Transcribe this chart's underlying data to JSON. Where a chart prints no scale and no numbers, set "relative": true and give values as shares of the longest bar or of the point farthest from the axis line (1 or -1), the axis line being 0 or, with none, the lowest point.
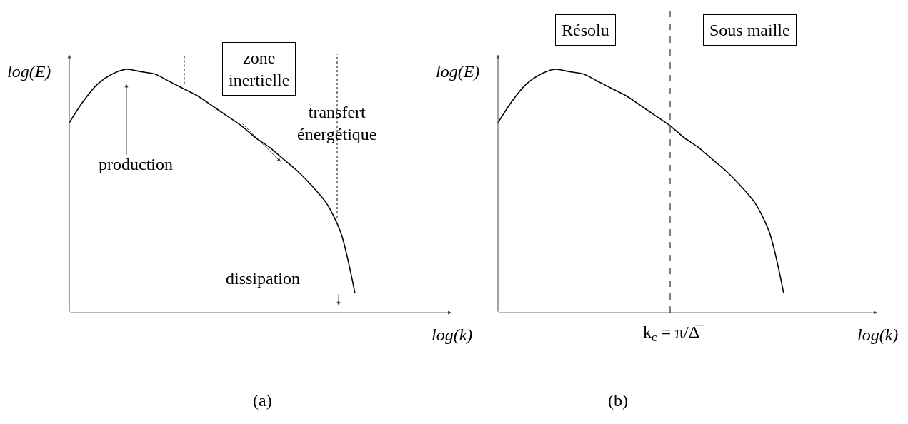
{
  "chart_data": [
    {
      "type": "line",
      "relative": true,
      "xlabel": "log(k)",
      "ylabel": "log(E)",
      "categories": [
        null,
        null,
        null,
        null,
        null,
        null,
        null,
        null,
        null,
        null,
        null,
        null,
        null,
        null,
        null,
        null,
        null,
        null,
        null,
        null,
        null
      ],
      "series": [
        {
          "color": "#000000",
          "values": [
            0.78,
            0.87,
            0.94,
            0.98,
            1,
            0.99,
            0.98,
            0.95,
            0.92,
            0.89,
            0.85,
            0.81,
            0.77,
            0.72,
            0.68,
            0.63,
            0.58,
            0.52,
            0.45,
            0.33,
            0.08
          ]
        }
      ],
      "annotations": [
        "zone\ninertielle",
        "transfert\nénergétique",
        "production",
        "dissipation",
        "(a)"
      ]
    },
    {
      "type": "line",
      "relative": true,
      "xlabel": "log(k)",
      "ylabel": "log(E)",
      "categories": [
        null,
        null,
        null,
        null,
        null,
        null,
        null,
        null,
        null,
        null,
        null,
        null,
        null,
        null,
        null,
        null,
        null,
        null,
        null,
        null,
        null
      ],
      "series": [
        {
          "color": "#000000",
          "values": [
            0.78,
            0.87,
            0.94,
            0.98,
            1,
            0.99,
            0.98,
            0.95,
            0.92,
            0.89,
            0.85,
            0.81,
            0.77,
            0.72,
            0.68,
            0.63,
            0.58,
            0.52,
            0.45,
            0.33,
            0.08
          ]
        }
      ],
      "annotations": [
        "Résolu",
        "Sous maille",
        "k$_{c}$ = π/Δ̅",
        "(b)"
      ]
    }
  ]
}
